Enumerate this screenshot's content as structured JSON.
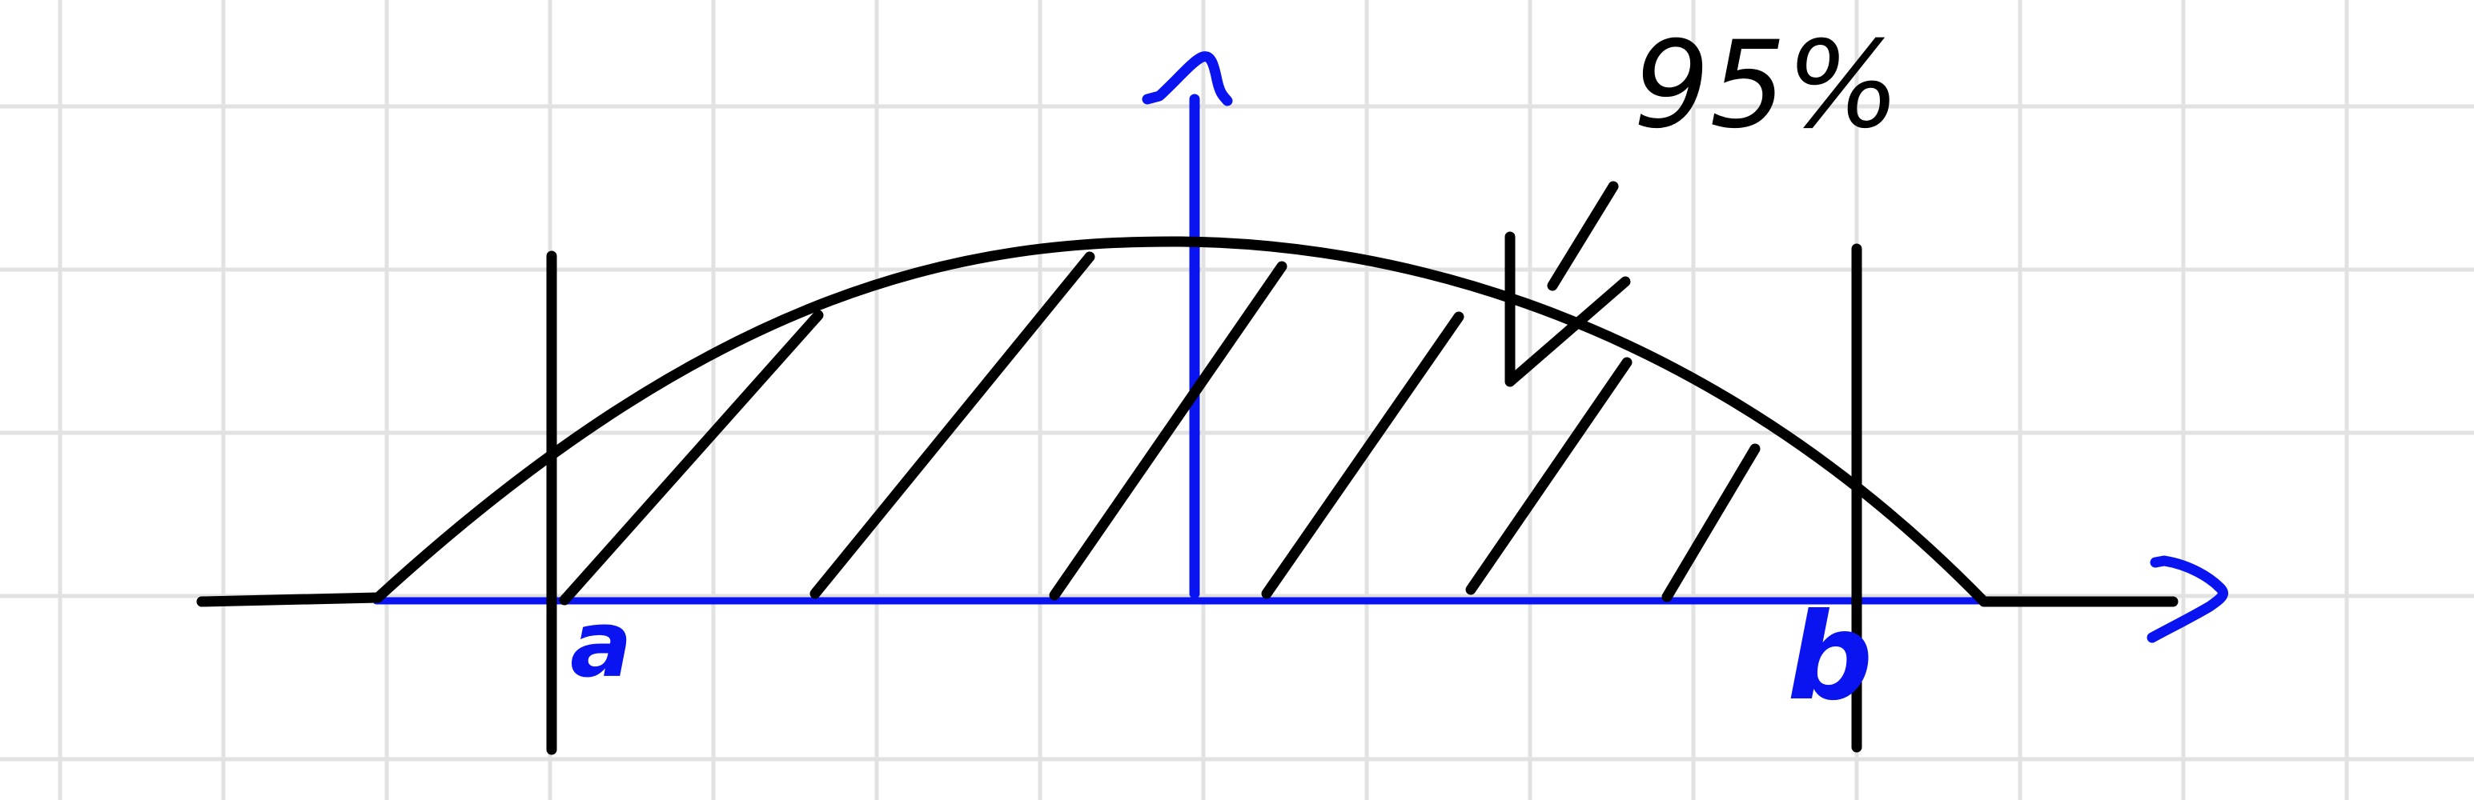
{
  "diagram": {
    "labels": {
      "left_bound": "a",
      "right_bound": "b",
      "area_percent": "95%"
    },
    "colors": {
      "paper": "#ffffff",
      "grid": "#e2e2e2",
      "ink": "#000000",
      "axes": "#0a14f0"
    }
  }
}
